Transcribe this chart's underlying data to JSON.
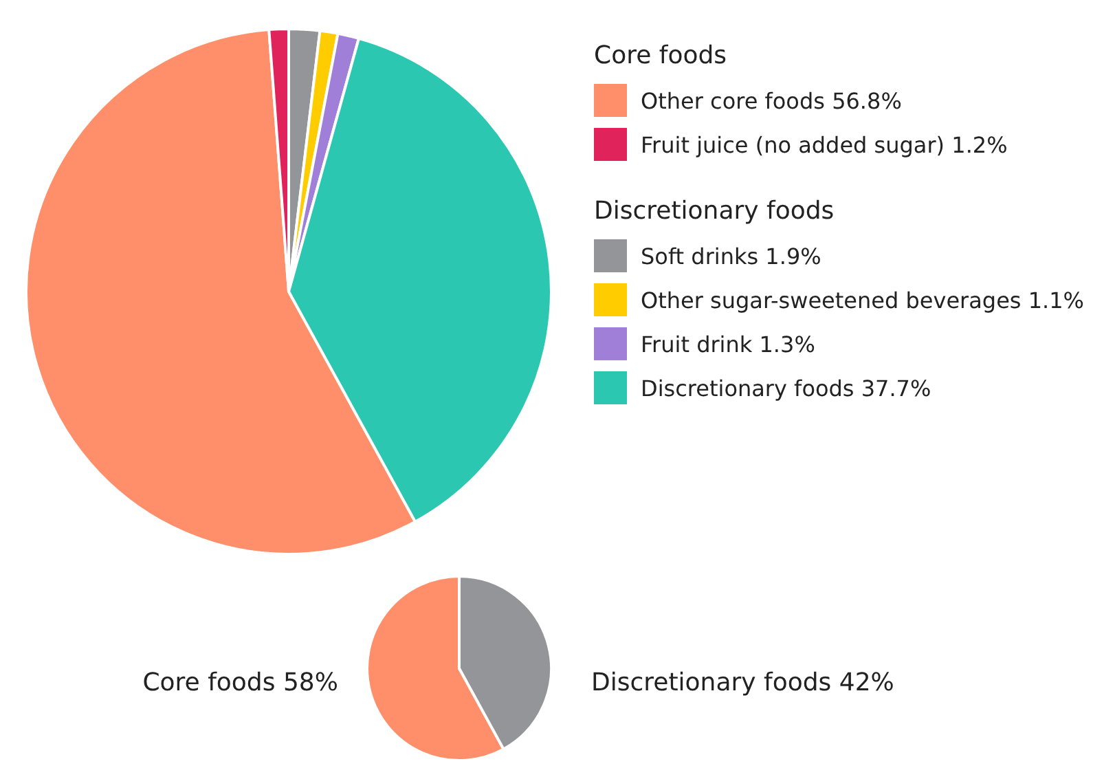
{
  "chart_data": [
    {
      "type": "pie",
      "categories": [
        "Other core foods",
        "Fruit juice (no added sugar)",
        "Soft drinks",
        "Other sugar-sweetened beverages",
        "Fruit drink",
        "Discretionary foods"
      ],
      "values": [
        56.8,
        1.2,
        1.9,
        1.1,
        1.3,
        37.7
      ],
      "value_labels": [
        "56.8%",
        "1.2%",
        "1.9%",
        "1.1%",
        "1.3%",
        "37.7%"
      ],
      "colors": [
        "#fe8f6a",
        "#e0235a",
        "#939598",
        "#ffcc00",
        "#a07fd8",
        "#2cc7b0"
      ],
      "annotations": [
        "Core foods",
        "Discretionary foods"
      ],
      "legend": "right"
    },
    {
      "type": "pie",
      "categories": [
        "Core foods",
        "Discretionary foods"
      ],
      "values": [
        58,
        42
      ],
      "value_labels": [
        "58%",
        "42%"
      ],
      "colors": [
        "#fe8f6a",
        "#939598"
      ]
    }
  ]
}
